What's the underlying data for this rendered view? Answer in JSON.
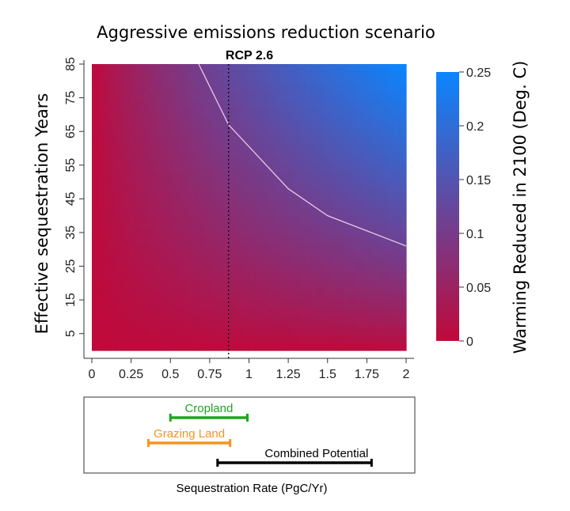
{
  "chart_data": {
    "type": "heatmap",
    "title": "Aggressive emissions reduction scenario",
    "subtitle": "RCP 2.6",
    "xlabel": "Sequestration Rate (PgC/Yr)",
    "ylabel": "Effective sequestration Years",
    "colorbar_label": "Warming Reduced in 2100 (Deg. C)",
    "xlim": [
      0,
      2
    ],
    "ylim": [
      0,
      85
    ],
    "x_ticks": [
      "0",
      "0.25",
      "0.5",
      "0.75",
      "1",
      "1.25",
      "1.5",
      "1.75",
      "2"
    ],
    "y_ticks": [
      "5",
      "15",
      "25",
      "35",
      "45",
      "55",
      "65",
      "75",
      "85"
    ],
    "colorbar_range": [
      0,
      0.25
    ],
    "colorbar_ticks": [
      "0",
      "0.05",
      "0.1",
      "0.15",
      "0.2",
      "0.25"
    ],
    "colors": {
      "low": "#c0093a",
      "high": "#0a86ff"
    },
    "reference_line_x": 0.87,
    "contour_points": [
      [
        0.68,
        85
      ],
      [
        0.87,
        67
      ],
      [
        1.25,
        48
      ],
      [
        1.5,
        40
      ],
      [
        2,
        31
      ]
    ],
    "ranges": [
      {
        "name": "Cropland",
        "min": 0.5,
        "max": 0.99,
        "color": "#1fa51f"
      },
      {
        "name": "Grazing Land",
        "min": 0.36,
        "max": 0.88,
        "color": "#f7941d"
      },
      {
        "name": "Combined Potential",
        "min": 0.8,
        "max": 1.78,
        "color": "#000000"
      }
    ]
  }
}
